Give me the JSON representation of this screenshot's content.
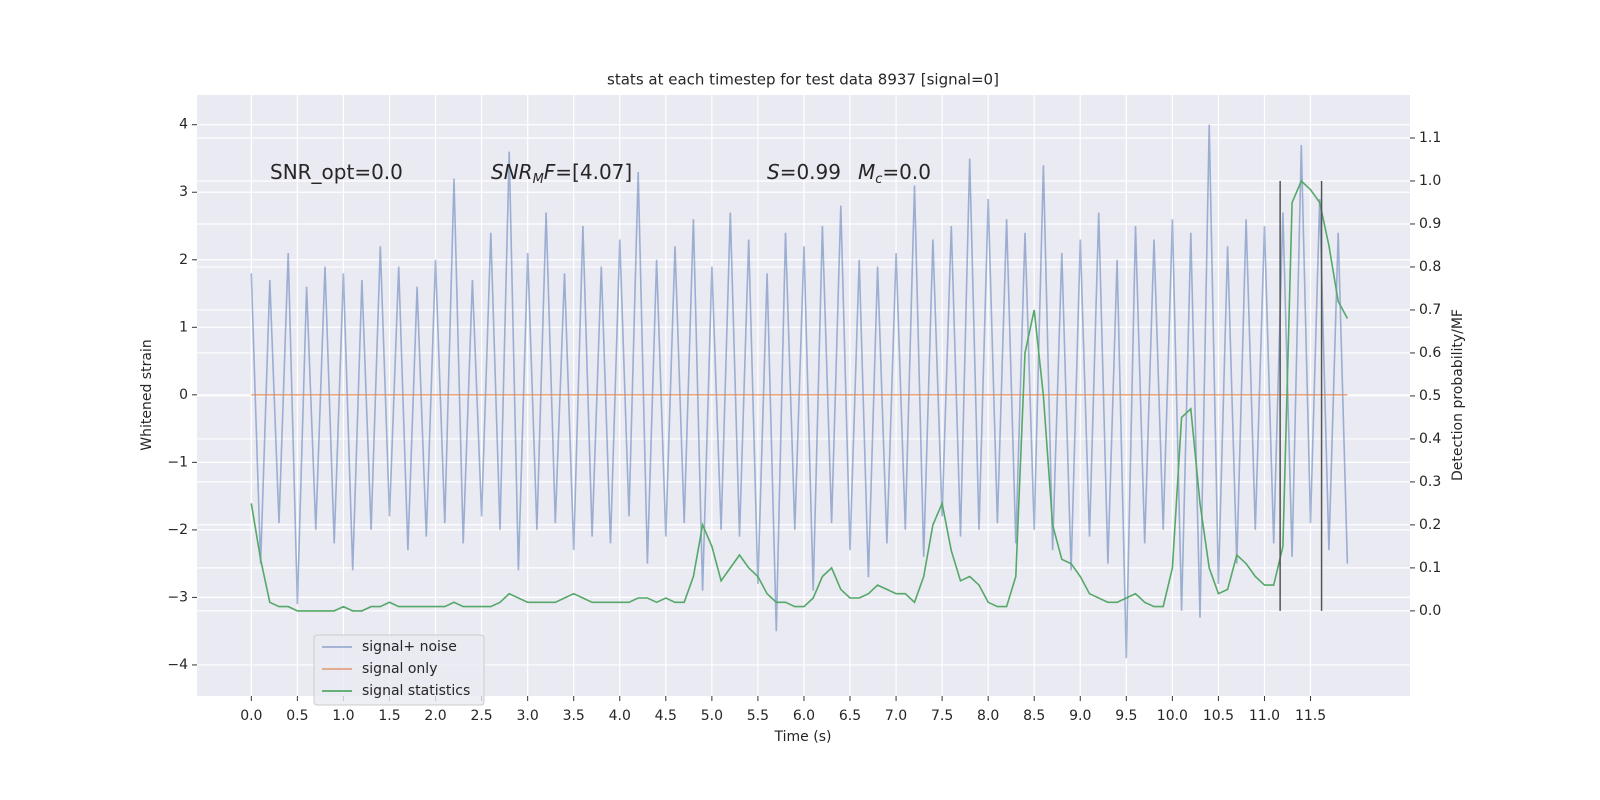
{
  "chart_data": {
    "type": "line",
    "title": "stats at each timestep for test data 8937 [signal=0]",
    "xlabel": "Time (s)",
    "ylabel": "Whitened strain",
    "y2label": "Detection probability/MF",
    "x": [
      0,
      0.1,
      0.2,
      0.3,
      0.4,
      0.5,
      0.6,
      0.7,
      0.8,
      0.9,
      1,
      1.1,
      1.2,
      1.3,
      1.4,
      1.5,
      1.6,
      1.7,
      1.8,
      1.9,
      2,
      2.1,
      2.2,
      2.3,
      2.4,
      2.5,
      2.6,
      2.7,
      2.8,
      2.9,
      3,
      3.1,
      3.2,
      3.3,
      3.4,
      3.5,
      3.6,
      3.7,
      3.8,
      3.9,
      4,
      4.1,
      4.2,
      4.3,
      4.4,
      4.5,
      4.6,
      4.7,
      4.8,
      4.9,
      5,
      5.1,
      5.2,
      5.3,
      5.4,
      5.5,
      5.6,
      5.7,
      5.8,
      5.9,
      6,
      6.1,
      6.2,
      6.3,
      6.4,
      6.5,
      6.6,
      6.7,
      6.8,
      6.9,
      7,
      7.1,
      7.2,
      7.3,
      7.4,
      7.5,
      7.6,
      7.7,
      7.8,
      7.9,
      8,
      8.1,
      8.2,
      8.3,
      8.4,
      8.5,
      8.6,
      8.7,
      8.8,
      8.9,
      9,
      9.1,
      9.2,
      9.3,
      9.4,
      9.5,
      9.6,
      9.7,
      9.8,
      9.9,
      10,
      10.1,
      10.2,
      10.3,
      10.4,
      10.5,
      10.6,
      10.7,
      10.8,
      10.9,
      11,
      11.1,
      11.2,
      11.3,
      11.4,
      11.5,
      11.6,
      11.7,
      11.8,
      11.9
    ],
    "series": [
      {
        "name": "signal+ noise",
        "color": "#4c72b0",
        "opacity": 0.5,
        "values": [
          1.8,
          -2.5,
          1.7,
          -1.9,
          2.1,
          -3.1,
          1.6,
          -2.0,
          1.9,
          -2.2,
          1.8,
          -2.6,
          1.7,
          -2.0,
          2.2,
          -1.8,
          1.9,
          -2.3,
          1.6,
          -2.1,
          2.0,
          -1.9,
          3.2,
          -2.2,
          1.7,
          -1.8,
          2.4,
          -2.0,
          3.6,
          -2.6,
          2.1,
          -2.0,
          2.7,
          -1.9,
          1.8,
          -2.3,
          2.5,
          -2.1,
          1.9,
          -2.2,
          2.3,
          -1.8,
          3.3,
          -2.5,
          2.0,
          -2.1,
          2.2,
          -1.9,
          2.6,
          -2.9,
          1.9,
          -2.0,
          2.7,
          -2.1,
          2.3,
          -2.8,
          1.8,
          -3.5,
          2.4,
          -2.0,
          2.2,
          -2.9,
          2.5,
          -1.9,
          2.8,
          -2.3,
          2.0,
          -2.7,
          1.9,
          -2.2,
          2.1,
          -2.0,
          3.1,
          -2.4,
          2.3,
          -1.8,
          2.5,
          -2.1,
          3.5,
          -2.0,
          2.9,
          -1.9,
          2.6,
          -2.2,
          2.4,
          -2.0,
          3.4,
          -2.3,
          2.1,
          -2.6,
          2.3,
          -2.1,
          2.7,
          -2.5,
          2.0,
          -3.9,
          2.5,
          -2.2,
          2.3,
          -2.0,
          2.6,
          -3.2,
          2.4,
          -3.3,
          4.0,
          -2.8,
          2.2,
          -2.5,
          2.6,
          -2.0,
          2.5,
          -2.2,
          2.7,
          -2.4,
          3.7,
          -1.9,
          2.9,
          -2.3,
          2.4,
          -2.5
        ]
      },
      {
        "name": "signal only",
        "color": "#dd8452",
        "opacity": 0.7,
        "values": [
          0,
          0,
          0,
          0,
          0,
          0,
          0,
          0,
          0,
          0,
          0,
          0,
          0,
          0,
          0,
          0,
          0,
          0,
          0,
          0,
          0,
          0,
          0,
          0,
          0,
          0,
          0,
          0,
          0,
          0,
          0,
          0,
          0,
          0,
          0,
          0,
          0,
          0,
          0,
          0,
          0,
          0,
          0,
          0,
          0,
          0,
          0,
          0,
          0,
          0,
          0,
          0,
          0,
          0,
          0,
          0,
          0,
          0,
          0,
          0,
          0,
          0,
          0,
          0,
          0,
          0,
          0,
          0,
          0,
          0,
          0,
          0,
          0,
          0,
          0,
          0,
          0,
          0,
          0,
          0,
          0,
          0,
          0,
          0,
          0,
          0,
          0,
          0,
          0,
          0,
          0,
          0,
          0,
          0,
          0,
          0,
          0,
          0,
          0,
          0,
          0,
          0,
          0,
          0,
          0,
          0,
          0,
          0,
          0,
          0,
          0,
          0,
          0,
          0,
          0,
          0,
          0,
          0,
          0,
          0
        ]
      },
      {
        "name": "signal statistics",
        "color": "#55a868",
        "opacity": 1,
        "axis": "y2",
        "values": [
          0.25,
          0.12,
          0.02,
          0.01,
          0.01,
          0.0,
          0.0,
          0.0,
          0.0,
          0.0,
          0.01,
          0.0,
          0.0,
          0.01,
          0.01,
          0.02,
          0.01,
          0.01,
          0.01,
          0.01,
          0.01,
          0.01,
          0.02,
          0.01,
          0.01,
          0.01,
          0.01,
          0.02,
          0.04,
          0.03,
          0.02,
          0.02,
          0.02,
          0.02,
          0.03,
          0.04,
          0.03,
          0.02,
          0.02,
          0.02,
          0.02,
          0.02,
          0.03,
          0.03,
          0.02,
          0.03,
          0.02,
          0.02,
          0.08,
          0.2,
          0.15,
          0.07,
          0.1,
          0.13,
          0.1,
          0.08,
          0.04,
          0.02,
          0.02,
          0.01,
          0.01,
          0.03,
          0.08,
          0.1,
          0.05,
          0.03,
          0.03,
          0.04,
          0.06,
          0.05,
          0.04,
          0.04,
          0.02,
          0.08,
          0.2,
          0.25,
          0.14,
          0.07,
          0.08,
          0.06,
          0.02,
          0.01,
          0.01,
          0.08,
          0.6,
          0.7,
          0.5,
          0.2,
          0.12,
          0.11,
          0.08,
          0.04,
          0.03,
          0.02,
          0.02,
          0.03,
          0.04,
          0.02,
          0.01,
          0.01,
          0.1,
          0.45,
          0.47,
          0.25,
          0.1,
          0.04,
          0.05,
          0.13,
          0.11,
          0.08,
          0.06,
          0.06,
          0.15,
          0.95,
          1.0,
          0.98,
          0.95,
          0.85,
          0.72,
          0.68
        ]
      }
    ],
    "vlines": [
      11.17,
      11.62
    ],
    "vline_range": [
      0,
      1.0
    ],
    "vline_color": "#555555",
    "xlim": [
      -0.59,
      12.58
    ],
    "ylim": [
      -4.46,
      4.44
    ],
    "y2lim": [
      -0.198,
      1.2
    ],
    "xticks": [
      {
        "value": 0,
        "label": "0.0"
      },
      {
        "value": 0.5,
        "label": "0.5"
      },
      {
        "value": 1,
        "label": "1.0"
      },
      {
        "value": 1.5,
        "label": "1.5"
      },
      {
        "value": 2,
        "label": "2.0"
      },
      {
        "value": 2.5,
        "label": "2.5"
      },
      {
        "value": 3,
        "label": "3.0"
      },
      {
        "value": 3.5,
        "label": "3.5"
      },
      {
        "value": 4,
        "label": "4.0"
      },
      {
        "value": 4.5,
        "label": "4.5"
      },
      {
        "value": 5,
        "label": "5.0"
      },
      {
        "value": 5.5,
        "label": "5.5"
      },
      {
        "value": 6,
        "label": "6.0"
      },
      {
        "value": 6.5,
        "label": "6.5"
      },
      {
        "value": 7,
        "label": "7.0"
      },
      {
        "value": 7.5,
        "label": "7.5"
      },
      {
        "value": 8,
        "label": "8.0"
      },
      {
        "value": 8.5,
        "label": "8.5"
      },
      {
        "value": 9,
        "label": "9.0"
      },
      {
        "value": 9.5,
        "label": "9.5"
      },
      {
        "value": 10,
        "label": "10.0"
      },
      {
        "value": 10.5,
        "label": "10.5"
      },
      {
        "value": 11,
        "label": "11.0"
      },
      {
        "value": 11.5,
        "label": "11.5"
      }
    ],
    "yticks": [
      {
        "value": -4,
        "label": "−4"
      },
      {
        "value": -3,
        "label": "−3"
      },
      {
        "value": -2,
        "label": "−2"
      },
      {
        "value": -1,
        "label": "−1"
      },
      0,
      1,
      2,
      3,
      4
    ],
    "y2ticks": [
      {
        "value": 0,
        "label": "0.0"
      },
      {
        "value": 0.1,
        "label": "0.1"
      },
      {
        "value": 0.2,
        "label": "0.2"
      },
      {
        "value": 0.3,
        "label": "0.3"
      },
      {
        "value": 0.4,
        "label": "0.4"
      },
      {
        "value": 0.5,
        "label": "0.5"
      },
      {
        "value": 0.6,
        "label": "0.6"
      },
      {
        "value": 0.7,
        "label": "0.7"
      },
      {
        "value": 0.8,
        "label": "0.8"
      },
      {
        "value": 0.9,
        "label": "0.9"
      },
      {
        "value": 1.0,
        "label": "1.0"
      },
      {
        "value": 1.1,
        "label": "1.1"
      }
    ],
    "grid": true,
    "legend": "lower left",
    "annotations": [
      [
        {
          "text": "SNR_opt=0.0"
        }
      ],
      [
        {
          "text": "SNR",
          "style": "italic"
        },
        {
          "text": "M",
          "style": "sub"
        },
        {
          "text": "F",
          "style": "italic"
        },
        {
          "text": "=[4.07]"
        }
      ],
      [
        {
          "text": "S",
          "style": "italic"
        },
        {
          "text": "=0.99"
        }
      ],
      [
        {
          "text": "M",
          "style": "italic"
        },
        {
          "text": "c",
          "style": "sub"
        },
        {
          "text": "=0.0"
        }
      ]
    ]
  }
}
